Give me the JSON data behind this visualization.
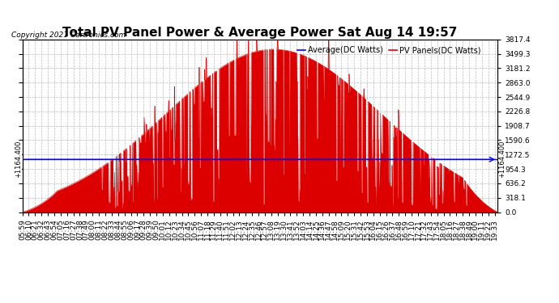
{
  "title": "Total PV Panel Power & Average Power Sat Aug 14 19:57",
  "copyright": "Copyright 2021 Cartronics.com",
  "legend_average": "Average(DC Watts)",
  "legend_pv": "PV Panels(DC Watts)",
  "ymin": 0.0,
  "ymax": 3817.4,
  "yticks": [
    0.0,
    318.1,
    636.2,
    954.3,
    1272.5,
    1590.6,
    1908.7,
    2226.8,
    2544.9,
    2863.0,
    3181.2,
    3499.3,
    3817.4
  ],
  "average_line": 1164.4,
  "average_line_label": "1164.400",
  "pv_color": "#dd0000",
  "average_color": "#0000ff",
  "background_color": "#ffffff",
  "grid_color": "#bbbbbb",
  "title_fontsize": 11,
  "tick_fontsize": 6.5,
  "copyright_fontsize": 6.5,
  "legend_fontsize": 7,
  "xstart_hour": 5,
  "xstart_min": 59,
  "xend_hour": 19,
  "xend_min": 38,
  "time_interval_min": 11
}
